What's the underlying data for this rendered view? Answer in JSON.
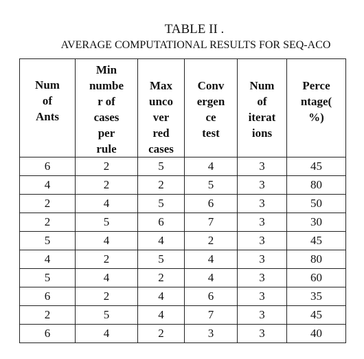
{
  "title": "TABLE II .",
  "subtitle": "AVERAGE COMPUTATIONAL RESULTS FOR SEQ-ACO",
  "table": {
    "header": [
      [
        "Num",
        "of",
        "Ants"
      ],
      [
        "Min",
        "numbe",
        "r of",
        "cases",
        "per",
        "rule"
      ],
      [
        "Max",
        "unco",
        "ver",
        "red",
        "cases"
      ],
      [
        "Conv",
        "ergen",
        "ce",
        "test"
      ],
      [
        "Num",
        "of",
        "iterat",
        "ions"
      ],
      [
        "Perce",
        "ntage(",
        "%)"
      ]
    ],
    "rows": [
      [
        "6",
        "2",
        "5",
        "4",
        "3",
        "45"
      ],
      [
        "4",
        "2",
        "2",
        "5",
        "3",
        "80"
      ],
      [
        "2",
        "4",
        "5",
        "6",
        "3",
        "50"
      ],
      [
        "2",
        "5",
        "6",
        "7",
        "3",
        "30"
      ],
      [
        "5",
        "4",
        "4",
        "2",
        "3",
        "45"
      ],
      [
        "4",
        "2",
        "5",
        "4",
        "3",
        "80"
      ],
      [
        "5",
        "4",
        "2",
        "4",
        "3",
        "60"
      ],
      [
        "6",
        "2",
        "4",
        "6",
        "3",
        "35"
      ],
      [
        "2",
        "5",
        "4",
        "7",
        "3",
        "45"
      ],
      [
        "6",
        "4",
        "2",
        "3",
        "3",
        "40"
      ]
    ]
  }
}
